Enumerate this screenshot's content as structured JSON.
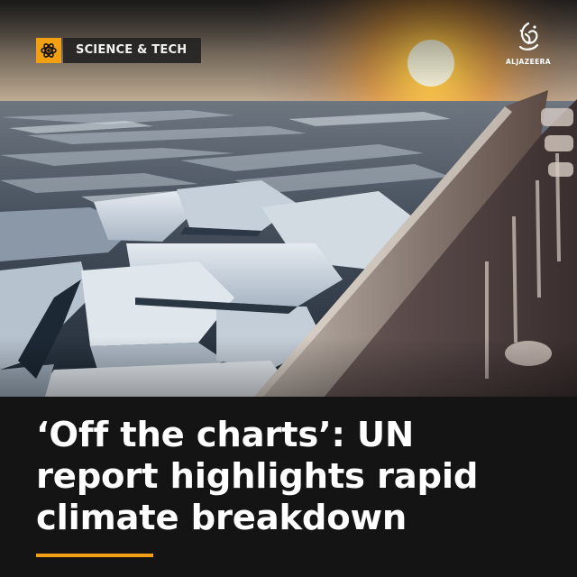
{
  "category": {
    "label": "SCIENCE & TECH",
    "icon": "atom-icon",
    "accent_color": "#f0a012"
  },
  "logo": {
    "name": "ALJAZEERA",
    "icon": "al-jazeera-calligraphy-logo"
  },
  "photo": {
    "subject": "sea-ice-from-ship-railing-at-sunset"
  },
  "headline": {
    "lines": [
      "‘Off the charts’: UN",
      "report highlights rapid",
      "climate breakdown"
    ]
  },
  "colors": {
    "background": "#141414",
    "accent": "#f0a012",
    "text": "#ffffff"
  }
}
